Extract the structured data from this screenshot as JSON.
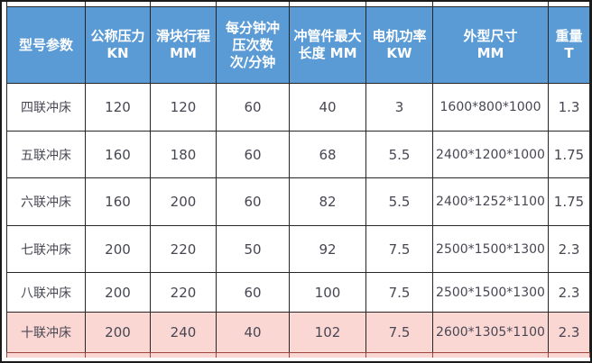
{
  "colors": {
    "header_bg": "#5b9bd5",
    "header_text": "#ffffff",
    "border": "#262626",
    "highlight_bg": "#fbd7d4",
    "highlight_border": "#9c4540",
    "body_text": "#474753"
  },
  "table": {
    "header": [
      {
        "lines": [
          "型号参数"
        ]
      },
      {
        "lines": [
          "公称压力",
          "KN"
        ]
      },
      {
        "lines": [
          "滑块行程",
          "MM"
        ]
      },
      {
        "lines": [
          "每分钟冲",
          "压次数",
          "次/分钟"
        ]
      },
      {
        "lines": [
          "冲管件最大",
          "长度 MM"
        ]
      },
      {
        "lines": [
          "电机功率",
          "KW"
        ]
      },
      {
        "lines": [
          "外型尺寸",
          "MM"
        ]
      },
      {
        "lines": [
          "重量",
          "T"
        ]
      }
    ],
    "rows": [
      {
        "model": "四联冲床",
        "values": [
          "120",
          "120",
          "60",
          "40",
          "3",
          "1600*800*1000",
          "1.3"
        ],
        "highlighted": false
      },
      {
        "model": "五联冲床",
        "values": [
          "160",
          "180",
          "60",
          "68",
          "5.5",
          "2400*1200*1000",
          "1.75"
        ],
        "highlighted": false
      },
      {
        "model": "六联冲床",
        "values": [
          "160",
          "200",
          "60",
          "82",
          "5.5",
          "2400*1252*1100",
          "1.75"
        ],
        "highlighted": false
      },
      {
        "model": "七联冲床",
        "values": [
          "200",
          "220",
          "50",
          "92",
          "7.5",
          "2500*1500*1300",
          "2.3"
        ],
        "highlighted": false
      },
      {
        "model": "八联冲床",
        "values": [
          "200",
          "220",
          "60",
          "100",
          "7.5",
          "2500*1500*1300",
          "2.3"
        ],
        "highlighted": false
      },
      {
        "model": "十联冲床",
        "values": [
          "200",
          "240",
          "40",
          "102",
          "7.5",
          "2600*1305*1100",
          "2.3"
        ],
        "highlighted": true
      }
    ]
  }
}
